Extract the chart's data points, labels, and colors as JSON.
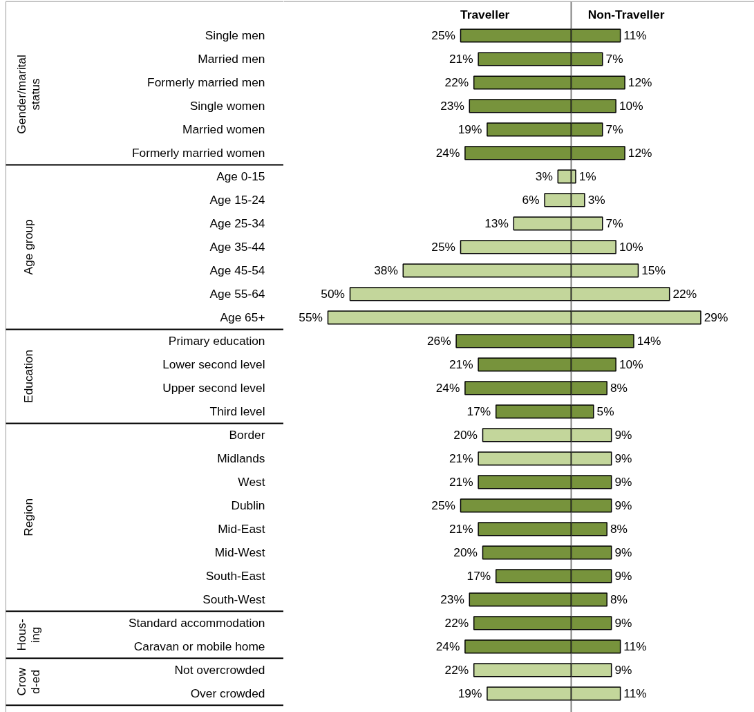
{
  "chart_data": [
    {
      "type": "bar",
      "orientation": "horizontal",
      "tick_labels": "y",
      "xlim": [
        65,
        0
      ],
      "categories": [
        "Single men",
        "Married men",
        "Formerly married men",
        "Single women",
        "Married women",
        "Formerly married women",
        "Age 0-15",
        "Age 15-24",
        "Age 25-34",
        "Age 35-44",
        "Age 45-54",
        "Age 55-64",
        "Age 65+",
        "Primary education",
        "Lower second level",
        "Upper second level",
        "Third level",
        "Border",
        "Midlands",
        "West",
        "Dublin",
        "Mid-East",
        "Mid-West",
        "South-East",
        "South-West",
        "Standard accommodation",
        "Caravan or mobile home",
        "Not overcrowded",
        "Over crowded"
      ],
      "series": [
        {
          "name": "Traveller",
          "values": [
            25,
            21,
            22,
            23,
            19,
            24,
            3,
            6,
            13,
            25,
            38,
            50,
            55,
            26,
            21,
            24,
            17,
            20,
            21,
            21,
            25,
            21,
            20,
            17,
            23,
            22,
            24,
            22,
            19
          ],
          "value_labels": [
            "25%",
            "21%",
            "22%",
            "23%",
            "19%",
            "24%",
            "3%",
            "6%",
            "13%",
            "25%",
            "38%",
            "50%",
            "55%",
            "26%",
            "21%",
            "24%",
            "17%",
            "20%",
            "21%",
            "21%",
            "25%",
            "21%",
            "20%",
            "17%",
            "23%",
            "22%",
            "24%",
            "22%",
            "19%"
          ],
          "colors": [
            "#77933c",
            "#77933c",
            "#77933c",
            "#77933c",
            "#77933c",
            "#77933c",
            "#c3d69b",
            "#c3d69b",
            "#c3d69b",
            "#c3d69b",
            "#c3d69b",
            "#c3d69b",
            "#c3d69b",
            "#77933c",
            "#77933c",
            "#77933c",
            "#77933c",
            "#c3d69b",
            "#c3d69b",
            "#77933c",
            "#77933c",
            "#77933c",
            "#77933c",
            "#77933c",
            "#77933c",
            "#77933c",
            "#77933c",
            "#c3d69b",
            "#c3d69b"
          ]
        }
      ],
      "annotations": [
        "Gender/marital\nstatus",
        "Age group",
        "Education",
        "Region",
        "Hous-\ning",
        "Crow\nd-ed"
      ]
    },
    {
      "type": "bar",
      "orientation": "horizontal",
      "tick_labels": false,
      "xlim": [
        0,
        41
      ],
      "series": [
        {
          "name": "Non-Traveller",
          "values": [
            11,
            7,
            12,
            10,
            7,
            12,
            1,
            3,
            7,
            10,
            15,
            22,
            29,
            14,
            10,
            8,
            5,
            9,
            9,
            9,
            9,
            8,
            9,
            9,
            8,
            9,
            11,
            9,
            11
          ],
          "value_labels": [
            "11%",
            "7%",
            "12%",
            "10%",
            "7%",
            "12%",
            "1%",
            "3%",
            "7%",
            "10%",
            "15%",
            "22%",
            "29%",
            "14%",
            "10%",
            "8%",
            "5%",
            "9%",
            "9%",
            "9%",
            "9%",
            "8%",
            "9%",
            "9%",
            "8%",
            "9%",
            "11%",
            "9%",
            "11%"
          ],
          "colors": [
            "#77933c",
            "#77933c",
            "#77933c",
            "#77933c",
            "#77933c",
            "#77933c",
            "#c3d69b",
            "#c3d69b",
            "#c3d69b",
            "#c3d69b",
            "#c3d69b",
            "#c3d69b",
            "#c3d69b",
            "#77933c",
            "#77933c",
            "#77933c",
            "#77933c",
            "#c3d69b",
            "#c3d69b",
            "#77933c",
            "#77933c",
            "#77933c",
            "#77933c",
            "#77933c",
            "#77933c",
            "#77933c",
            "#77933c",
            "#c3d69b",
            "#c3d69b"
          ]
        }
      ]
    }
  ]
}
